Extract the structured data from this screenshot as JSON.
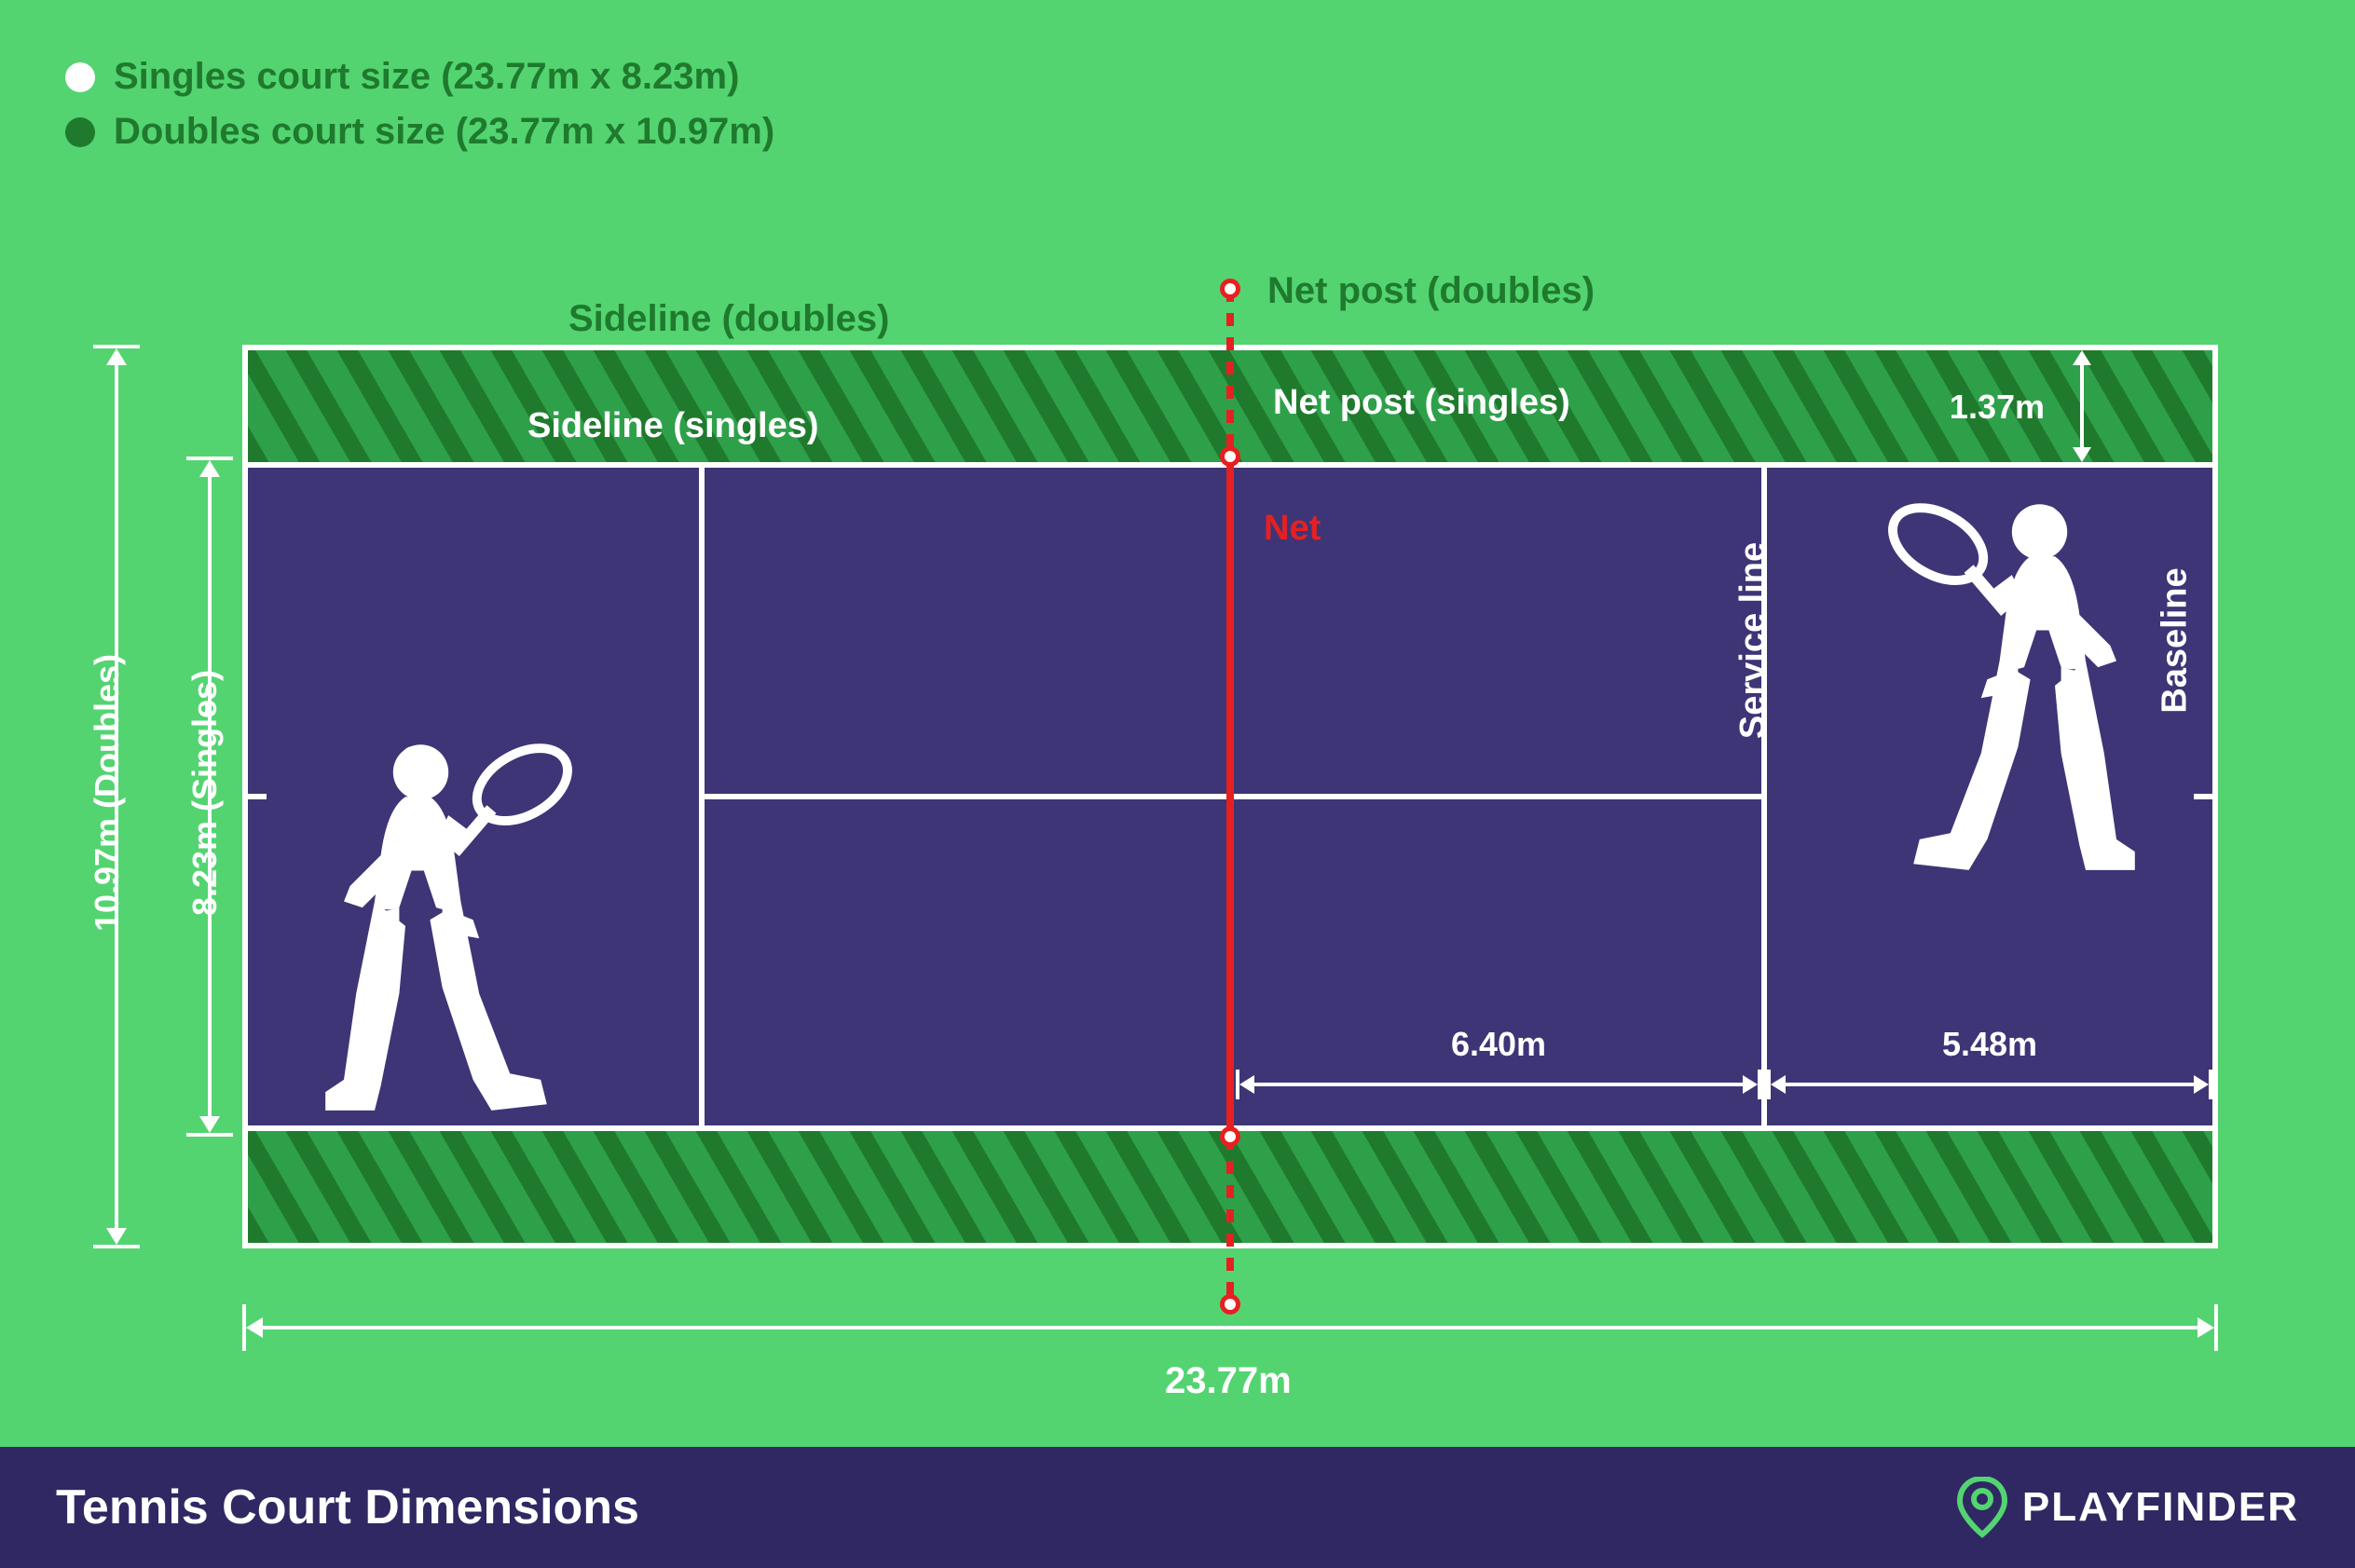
{
  "colors": {
    "bg": "#53d471",
    "court": "#3e3577",
    "alley_base": "#1f7a2d",
    "alley_stripe": "#2fa04a",
    "line": "#ffffff",
    "net": "#e62021",
    "footer_bg": "#2f2862",
    "footer_text": "#ffffff",
    "legend_singles": "#ffffff",
    "legend_doubles": "#1f7a2d",
    "legend_text": "#1f7a2d",
    "label_dark": "#1f7a2d",
    "brand_accent": "#53d471"
  },
  "legend": {
    "singles": "Singles court size (23.77m x 8.23m)",
    "doubles": "Doubles court size (23.77m x 10.97m)"
  },
  "labels": {
    "sideline_doubles": "Sideline (doubles)",
    "sideline_singles": "Sideline (singles)",
    "net_post_doubles": "Net post (doubles)",
    "net_post_singles": "Net post (singles)",
    "net": "Net",
    "service_line": "Service line",
    "baseline": "Baseline",
    "doubles_w": "10.97m (Doubles)",
    "singles_w": "8.23m (Singles)",
    "length": "23.77m",
    "alley_w": "1.37m",
    "service_box": "6.40m",
    "back_court": "5.48m"
  },
  "footer": {
    "title": "Tennis Court Dimensions",
    "brand": "PLAYFINDER"
  },
  "fonts": {
    "legend": 40,
    "outer_label": 40,
    "inner_label": 38,
    "dim": 36,
    "net": 38,
    "footer_title": 52,
    "brand": 44
  },
  "layout": {
    "alley_h": 120,
    "service_from_net": 570,
    "line_w": 6
  }
}
